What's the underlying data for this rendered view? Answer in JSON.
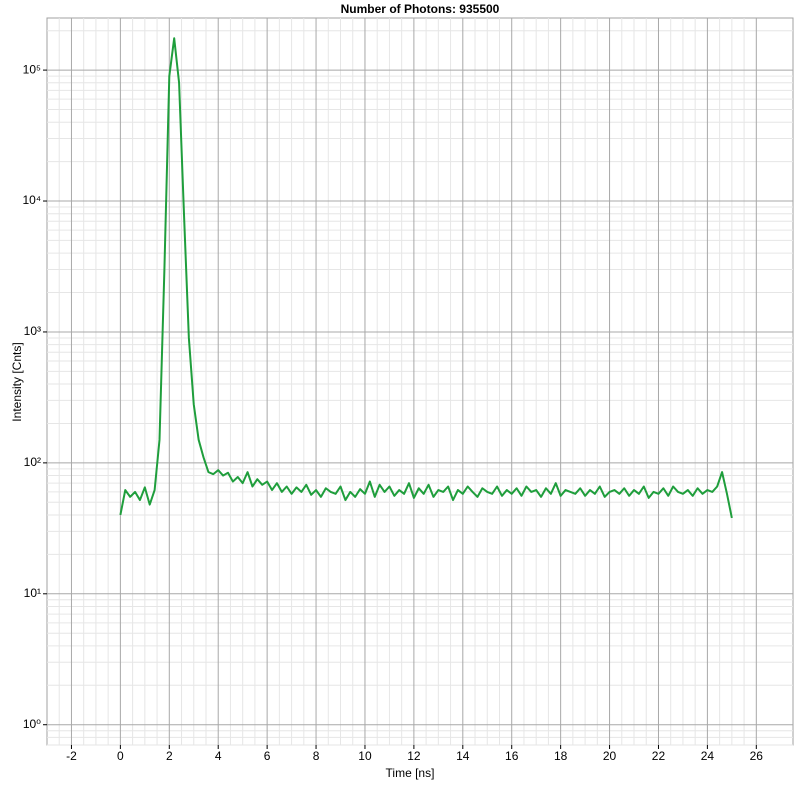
{
  "chart_data": {
    "type": "line",
    "title": "Number of Photons: 935500",
    "xlabel": "Time [ns]",
    "ylabel": "Intensity [Cnts]",
    "color": "#1f9e3c",
    "log_y": true,
    "grid": true,
    "minor_grid": true,
    "xlim": [
      -3,
      27.5
    ],
    "ylim": [
      0.7,
      250000
    ],
    "xticks": [
      -2,
      0,
      2,
      4,
      6,
      8,
      10,
      12,
      14,
      16,
      18,
      20,
      22,
      24,
      26
    ],
    "yticks": [
      {
        "value": 1,
        "label": "10⁰"
      },
      {
        "value": 10,
        "label": "10¹"
      },
      {
        "value": 100,
        "label": "10²"
      },
      {
        "value": 1000,
        "label": "10³"
      },
      {
        "value": 10000,
        "label": "10⁴"
      },
      {
        "value": 100000,
        "label": "10⁵"
      }
    ],
    "x": [
      0,
      0.2,
      0.4,
      0.6,
      0.8,
      1.0,
      1.2,
      1.4,
      1.6,
      1.8,
      2.0,
      2.2,
      2.4,
      2.6,
      2.8,
      3.0,
      3.2,
      3.4,
      3.6,
      3.8,
      4.0,
      4.2,
      4.4,
      4.6,
      4.8,
      5.0,
      5.2,
      5.4,
      5.6,
      5.8,
      6.0,
      6.2,
      6.4,
      6.6,
      6.8,
      7.0,
      7.2,
      7.4,
      7.6,
      7.8,
      8.0,
      8.2,
      8.4,
      8.6,
      8.8,
      9.0,
      9.2,
      9.4,
      9.6,
      9.8,
      10.0,
      10.2,
      10.4,
      10.6,
      10.8,
      11.0,
      11.2,
      11.4,
      11.6,
      11.8,
      12.0,
      12.2,
      12.4,
      12.6,
      12.8,
      13.0,
      13.2,
      13.4,
      13.6,
      13.8,
      14.0,
      14.2,
      14.4,
      14.6,
      14.8,
      15.0,
      15.2,
      15.4,
      15.6,
      15.8,
      16.0,
      16.2,
      16.4,
      16.6,
      16.8,
      17.0,
      17.2,
      17.4,
      17.6,
      17.8,
      18.0,
      18.2,
      18.4,
      18.6,
      18.8,
      19.0,
      19.2,
      19.4,
      19.6,
      19.8,
      20.0,
      20.2,
      20.4,
      20.6,
      20.8,
      21.0,
      21.2,
      21.4,
      21.6,
      21.8,
      22.0,
      22.2,
      22.4,
      22.6,
      22.8,
      23.0,
      23.2,
      23.4,
      23.6,
      23.8,
      24.0,
      24.2,
      24.4,
      24.6,
      24.8,
      25.0
    ],
    "values": [
      40,
      62,
      55,
      60,
      52,
      65,
      48,
      62,
      150,
      3000,
      90000,
      175000,
      80000,
      8000,
      900,
      280,
      150,
      110,
      85,
      82,
      88,
      80,
      84,
      72,
      78,
      70,
      85,
      66,
      75,
      68,
      72,
      62,
      70,
      60,
      66,
      58,
      65,
      60,
      68,
      57,
      62,
      55,
      64,
      60,
      58,
      66,
      52,
      60,
      55,
      63,
      58,
      72,
      55,
      68,
      60,
      66,
      56,
      62,
      58,
      70,
      54,
      64,
      58,
      68,
      55,
      62,
      60,
      66,
      52,
      62,
      58,
      66,
      60,
      55,
      64,
      60,
      58,
      66,
      56,
      62,
      58,
      64,
      56,
      66,
      60,
      62,
      55,
      64,
      58,
      70,
      56,
      62,
      60,
      58,
      64,
      56,
      62,
      58,
      66,
      55,
      60,
      62,
      58,
      64,
      56,
      62,
      58,
      66,
      54,
      60,
      58,
      64,
      56,
      66,
      60,
      58,
      62,
      56,
      64,
      58,
      62,
      60,
      66,
      85,
      58,
      38
    ]
  }
}
